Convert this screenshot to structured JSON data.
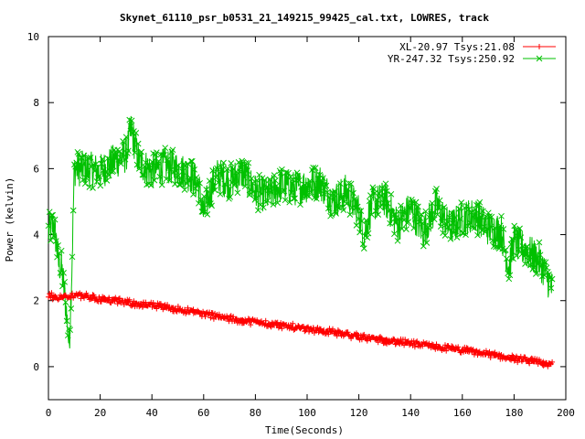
{
  "chart_data": {
    "type": "line",
    "title": "Skynet_61110_psr_b0531_21_149215_99425_cal.txt, LOWRES, track",
    "xlabel": "Time(Seconds)",
    "ylabel": "Power (kelvin)",
    "xlim": [
      0,
      200
    ],
    "ylim": [
      -1,
      10
    ],
    "xticks": [
      "0",
      "20",
      "40",
      "60",
      "80",
      "100",
      "120",
      "140",
      "160",
      "180",
      "200"
    ],
    "yticks": [
      "0",
      "2",
      "4",
      "6",
      "8",
      "10"
    ],
    "grid": false,
    "legend_position": "top-right",
    "series": [
      {
        "name": "XL-20.97 Tsys:21.08",
        "color": "#ff0000",
        "marker": "plus",
        "x": [
          0,
          5,
          8,
          10,
          20,
          30,
          40,
          50,
          60,
          70,
          80,
          90,
          100,
          110,
          120,
          130,
          140,
          150,
          160,
          170,
          180,
          190,
          195
        ],
        "values": [
          2.15,
          2.1,
          2.1,
          2.2,
          2.05,
          1.95,
          1.85,
          1.75,
          1.6,
          1.45,
          1.35,
          1.25,
          1.15,
          1.05,
          0.9,
          0.8,
          0.7,
          0.6,
          0.5,
          0.38,
          0.25,
          0.12,
          0.05
        ],
        "noise": 0.1
      },
      {
        "name": "YR-247.32 Tsys:250.92",
        "color": "#00c000",
        "marker": "x",
        "x": [
          0,
          2,
          3,
          4,
          5,
          6,
          7,
          8,
          9,
          10,
          15,
          20,
          25,
          30,
          32,
          35,
          40,
          45,
          50,
          55,
          58,
          60,
          62,
          65,
          70,
          75,
          80,
          85,
          90,
          95,
          100,
          105,
          110,
          115,
          120,
          122,
          125,
          130,
          135,
          140,
          145,
          150,
          155,
          160,
          165,
          170,
          175,
          178,
          180,
          185,
          190,
          195
        ],
        "values": [
          4.1,
          4.3,
          3.8,
          3.1,
          3.0,
          2.4,
          1.6,
          0.6,
          2.8,
          6.0,
          6.0,
          5.9,
          6.2,
          6.4,
          7.2,
          6.2,
          5.9,
          6.1,
          6.0,
          5.8,
          5.5,
          4.6,
          5.2,
          5.8,
          5.6,
          5.9,
          5.3,
          5.2,
          5.5,
          5.4,
          5.5,
          5.6,
          5.0,
          5.3,
          4.7,
          4.0,
          4.9,
          5.1,
          4.3,
          4.8,
          4.1,
          4.9,
          4.2,
          4.5,
          4.6,
          4.2,
          4.1,
          3.0,
          3.8,
          3.5,
          3.2,
          2.3
        ],
        "noise": 0.55
      }
    ]
  }
}
